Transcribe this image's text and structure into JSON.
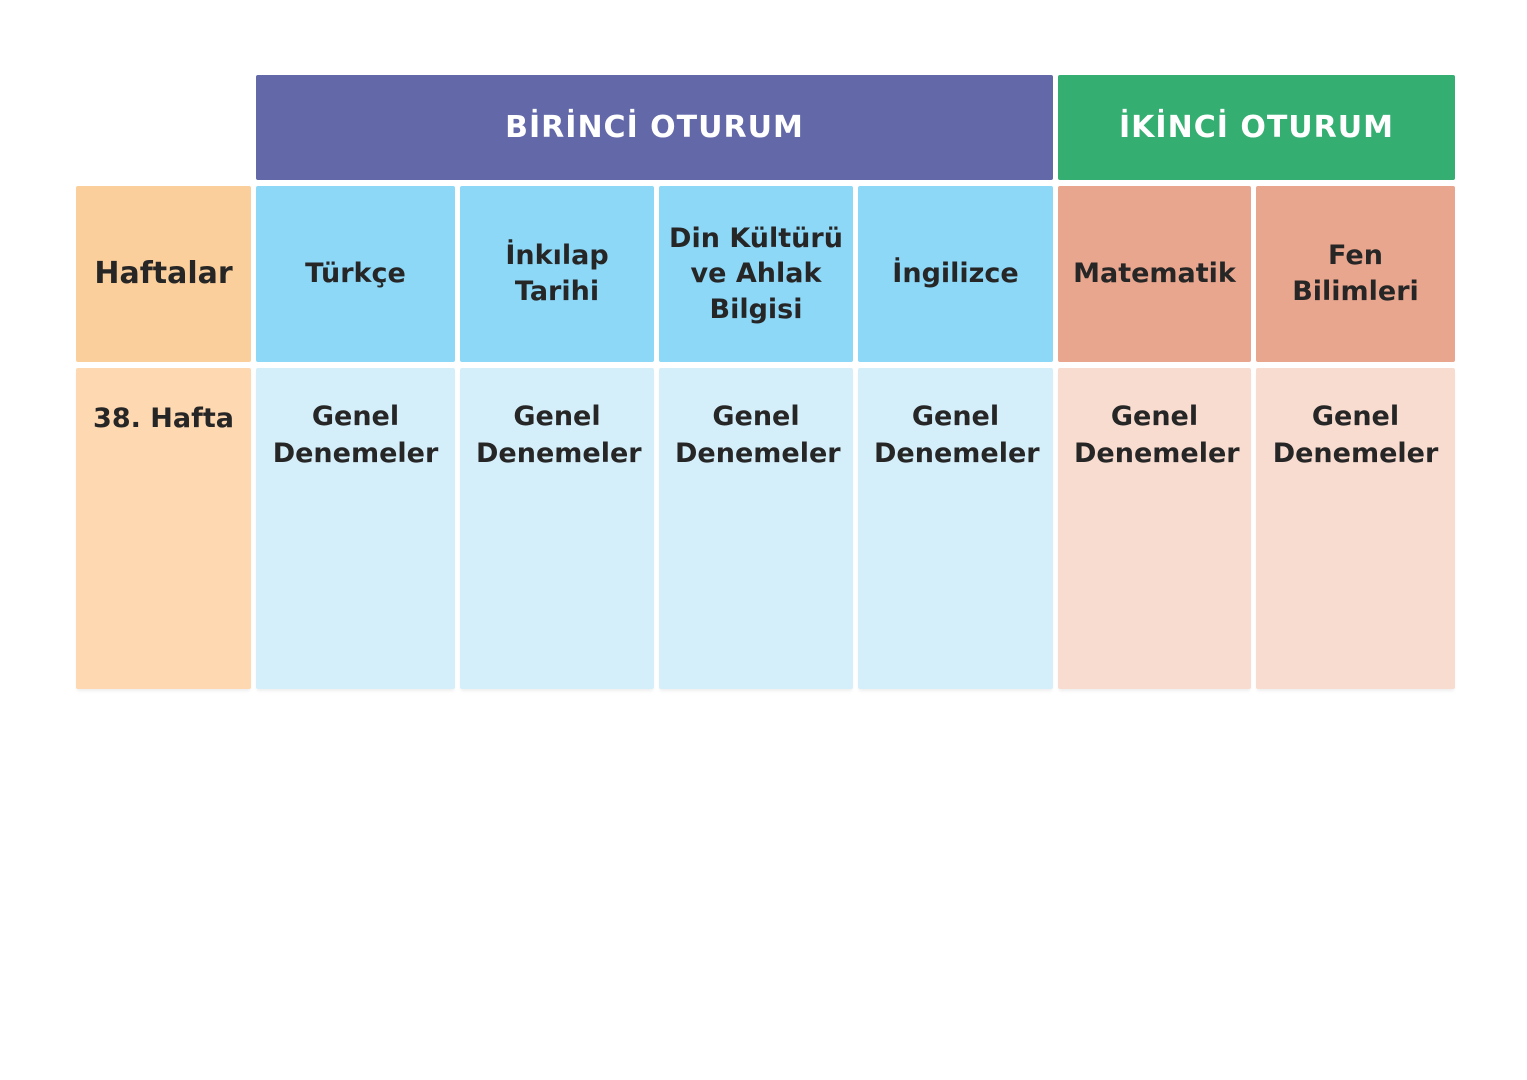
{
  "colors": {
    "session1_bg": "#6268A8",
    "session2_bg": "#35AE71",
    "week_header_bg": "#FBCF9C",
    "week_data_bg": "#FDD8B0",
    "subject_session1_bg": "#8DD7F7",
    "subject_session2_bg": "#E9A68E",
    "data_session1_bg": "#D5EFFA",
    "data_session2_bg": "#F8DCD0",
    "session_text": "#FFFFFF",
    "cell_text": "#262626",
    "page_bg": "#FFFFFF"
  },
  "table": {
    "session_headers": [
      {
        "label": "BİRİNCİ OTURUM",
        "columns_spanned": 4
      },
      {
        "label": "İKİNCİ OTURUM",
        "columns_spanned": 2
      }
    ],
    "corner_header": "Haftalar",
    "columns": [
      {
        "label": "Türkçe",
        "session": "BİRİNCİ OTURUM"
      },
      {
        "label": "İnkılap\nTarihi",
        "session": "BİRİNCİ OTURUM"
      },
      {
        "label": "Din Kültürü\nve Ahlak\nBilgisi",
        "session": "BİRİNCİ OTURUM"
      },
      {
        "label": "İngilizce",
        "session": "BİRİNCİ OTURUM"
      },
      {
        "label": "Matematik",
        "session": "İKİNCİ OTURUM"
      },
      {
        "label": "Fen\nBilimleri",
        "session": "İKİNCİ OTURUM"
      }
    ],
    "rows": [
      {
        "week": "38. Hafta",
        "cells": [
          "Genel Denemeler",
          "Genel Denemeler",
          "Genel Denemeler",
          "Genel Denemeler",
          "Genel Denemeler",
          "Genel Denemeler"
        ]
      }
    ]
  }
}
